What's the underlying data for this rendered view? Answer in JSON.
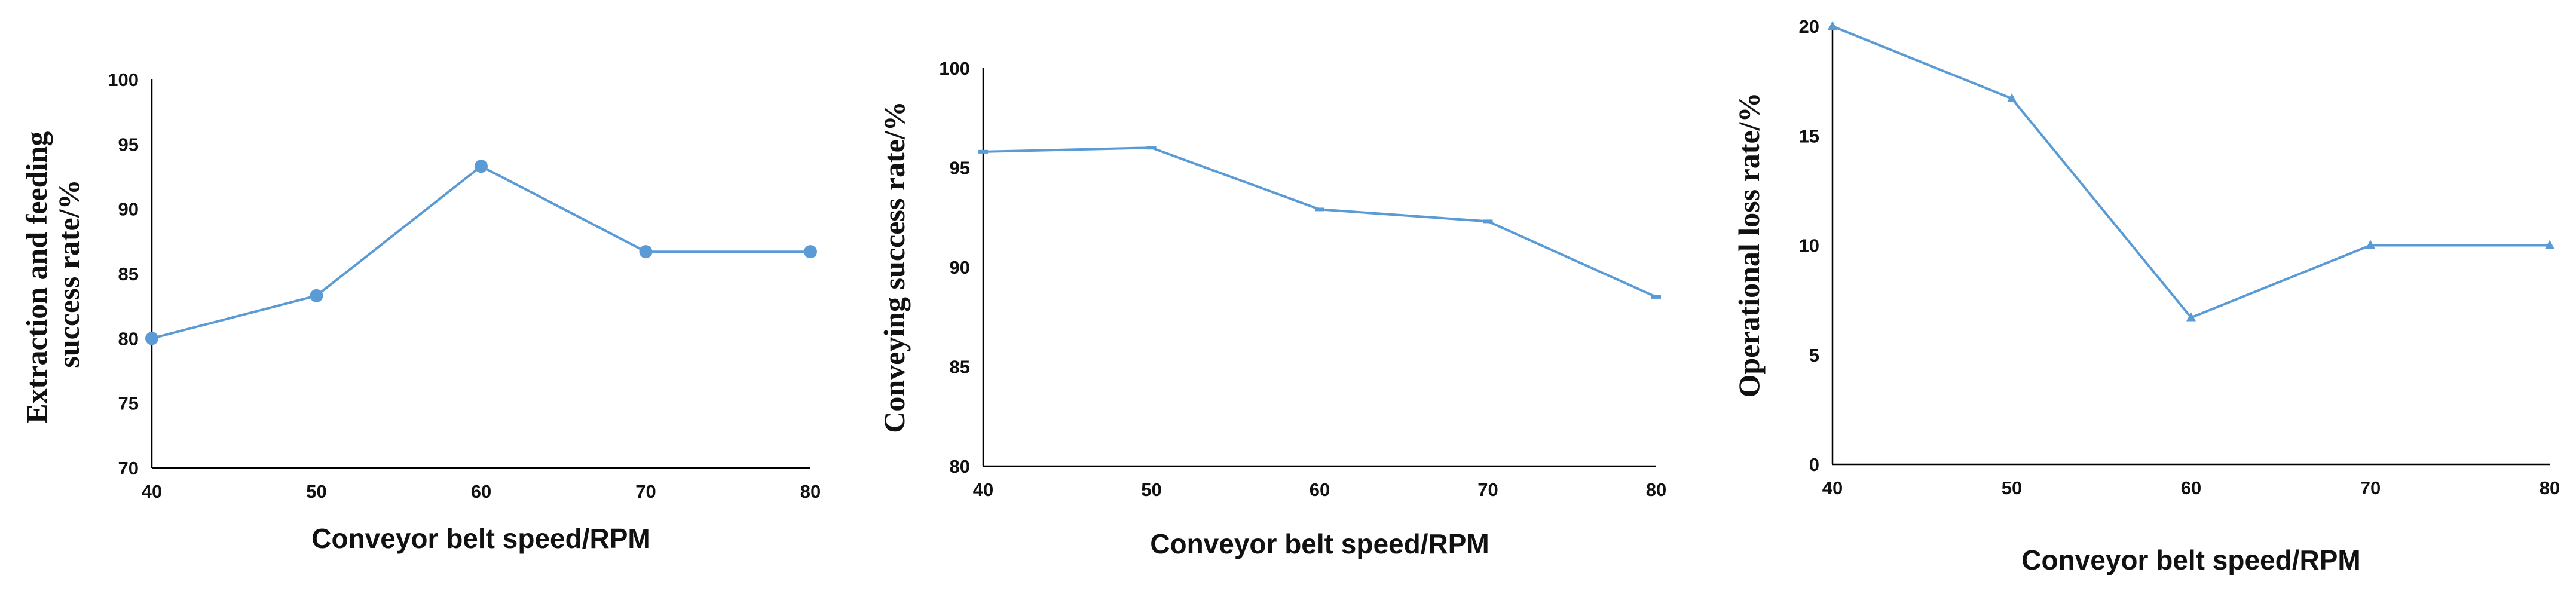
{
  "chart_data": [
    {
      "type": "line",
      "xlabel": "Conveyor belt speed/RPM",
      "ylabel_lines": [
        "Extraction and feeding",
        "success rate/%"
      ],
      "xlim": [
        40,
        80
      ],
      "ylim": [
        70,
        100
      ],
      "x_ticks": [
        "40",
        "50",
        "60",
        "70",
        "80"
      ],
      "y_ticks": [
        "70",
        "75",
        "80",
        "85",
        "90",
        "95",
        "100"
      ],
      "marker": "circle",
      "grid": false,
      "series": [
        {
          "x": [
            40,
            50,
            60,
            70,
            80
          ],
          "values": [
            80.0,
            83.3,
            93.3,
            86.7,
            86.7
          ]
        }
      ]
    },
    {
      "type": "line",
      "xlabel": "Conveyor belt speed/RPM",
      "ylabel_lines": [
        "Conveying success rate/%"
      ],
      "xlim": [
        40,
        80
      ],
      "ylim": [
        80,
        100
      ],
      "x_ticks": [
        "40",
        "50",
        "60",
        "70",
        "80"
      ],
      "y_ticks": [
        "80",
        "85",
        "90",
        "95",
        "100"
      ],
      "marker": "dash",
      "grid": false,
      "series": [
        {
          "x": [
            40,
            50,
            60,
            70,
            80
          ],
          "values": [
            95.8,
            96.0,
            92.9,
            92.3,
            88.5
          ]
        }
      ]
    },
    {
      "type": "line",
      "xlabel": "Conveyor belt speed/RPM",
      "ylabel_lines": [
        "Operational loss rate/%"
      ],
      "xlim": [
        40,
        80
      ],
      "ylim": [
        0,
        20
      ],
      "x_ticks": [
        "40",
        "50",
        "60",
        "70",
        "80"
      ],
      "y_ticks": [
        "0",
        "5",
        "10",
        "15",
        "20"
      ],
      "marker": "triangle",
      "grid": false,
      "series": [
        {
          "x": [
            40,
            50,
            60,
            70,
            80
          ],
          "values": [
            20.0,
            16.7,
            6.7,
            10.0,
            10.0
          ]
        }
      ]
    }
  ],
  "colors": {
    "series": "#5b9bd5",
    "axis": "#000000",
    "text": "#111111"
  }
}
